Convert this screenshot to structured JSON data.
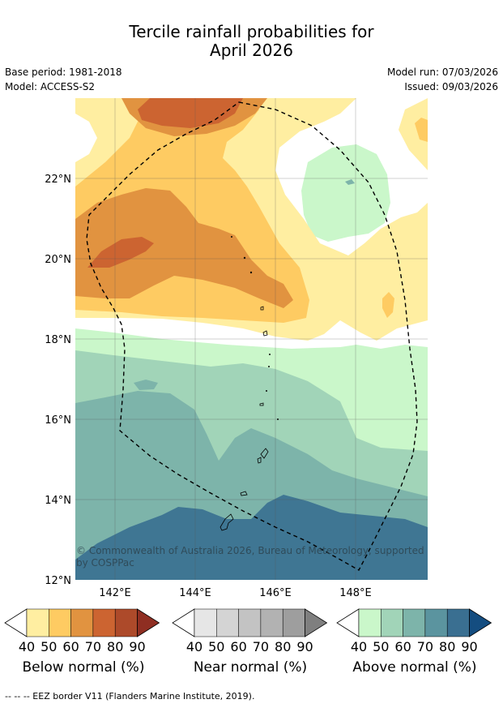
{
  "title": {
    "line1": "Tercile rainfall probabilities for",
    "line2": "April 2026"
  },
  "meta": {
    "base_period": "Base period: 1981-2018",
    "model": "Model: ACCESS-S2",
    "model_run": "Model run: 07/03/2026",
    "issued": "Issued: 09/03/2026"
  },
  "map": {
    "lat_labels": [
      "22°N",
      "20°N",
      "18°N",
      "16°N",
      "14°N",
      "12°N"
    ],
    "lon_labels": [
      "142°E",
      "144°E",
      "146°E",
      "148°E"
    ],
    "copyright": "© Commonwealth of Australia 2026, Bureau of Meteorology, supported by COSPPac",
    "eez_line": "dashed-black"
  },
  "colorbars": [
    {
      "label": "Below normal (%)",
      "ticks": [
        "40",
        "50",
        "60",
        "70",
        "80",
        "90"
      ],
      "colors": [
        "#ffeea1",
        "#fecb62",
        "#e19340",
        "#cc6431",
        "#ad4a2a",
        "#8f2e22"
      ]
    },
    {
      "label": "Near normal (%)",
      "ticks": [
        "40",
        "50",
        "60",
        "70",
        "80",
        "90"
      ],
      "colors": [
        "#e6e6e6",
        "#d4d4d4",
        "#c3c3c3",
        "#b2b2b2",
        "#9e9e9e",
        "#7f7f7f"
      ]
    },
    {
      "label": "Above normal (%)",
      "ticks": [
        "40",
        "50",
        "60",
        "70",
        "80",
        "90"
      ],
      "colors": [
        "#caf7ca",
        "#a1d4b8",
        "#7db4aa",
        "#5b949f",
        "#3a6f91",
        "#144d80"
      ]
    }
  ],
  "footnote": "--  --  -- EEZ border V11 (Flanders Marine Institute, 2019)."
}
